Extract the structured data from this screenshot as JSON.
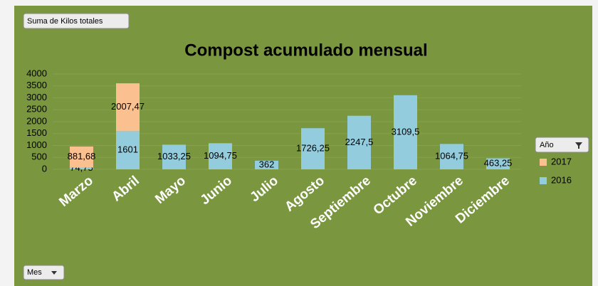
{
  "chart_data": {
    "type": "stacked_bar",
    "title": "Compost acumulado mensual",
    "value_field": "Suma de Kilos totales",
    "axis_field": "Mes",
    "legend_title": "Año",
    "categories": [
      "Marzo",
      "Abril",
      "Mayo",
      "Junio",
      "Julio",
      "Agosto",
      "Septiembre",
      "Octubre",
      "Noviembre",
      "Diciembre"
    ],
    "series": [
      {
        "name": "2016",
        "color": "#93cddd",
        "values": [
          74.75,
          1601,
          1033.25,
          1094.75,
          362,
          1726.25,
          2247.5,
          3109.5,
          1064.75,
          463.25
        ],
        "value_labels": [
          "74,75",
          "1601",
          "1033,25",
          "1094,75",
          "362",
          "1726,25",
          "2247,5",
          "3109,5",
          "1064,75",
          "463,25"
        ]
      },
      {
        "name": "2017",
        "color": "#fac090",
        "values": [
          881.68,
          2007.47,
          null,
          null,
          null,
          null,
          null,
          null,
          null,
          null
        ],
        "value_labels": [
          "881,68",
          "2007,47",
          null,
          null,
          null,
          null,
          null,
          null,
          null,
          null
        ]
      }
    ],
    "ylim": [
      0,
      4000
    ],
    "yticks": [
      0,
      500,
      1000,
      1500,
      2000,
      2500,
      3000,
      3500,
      4000
    ],
    "grid": true,
    "legend_position": "right"
  }
}
